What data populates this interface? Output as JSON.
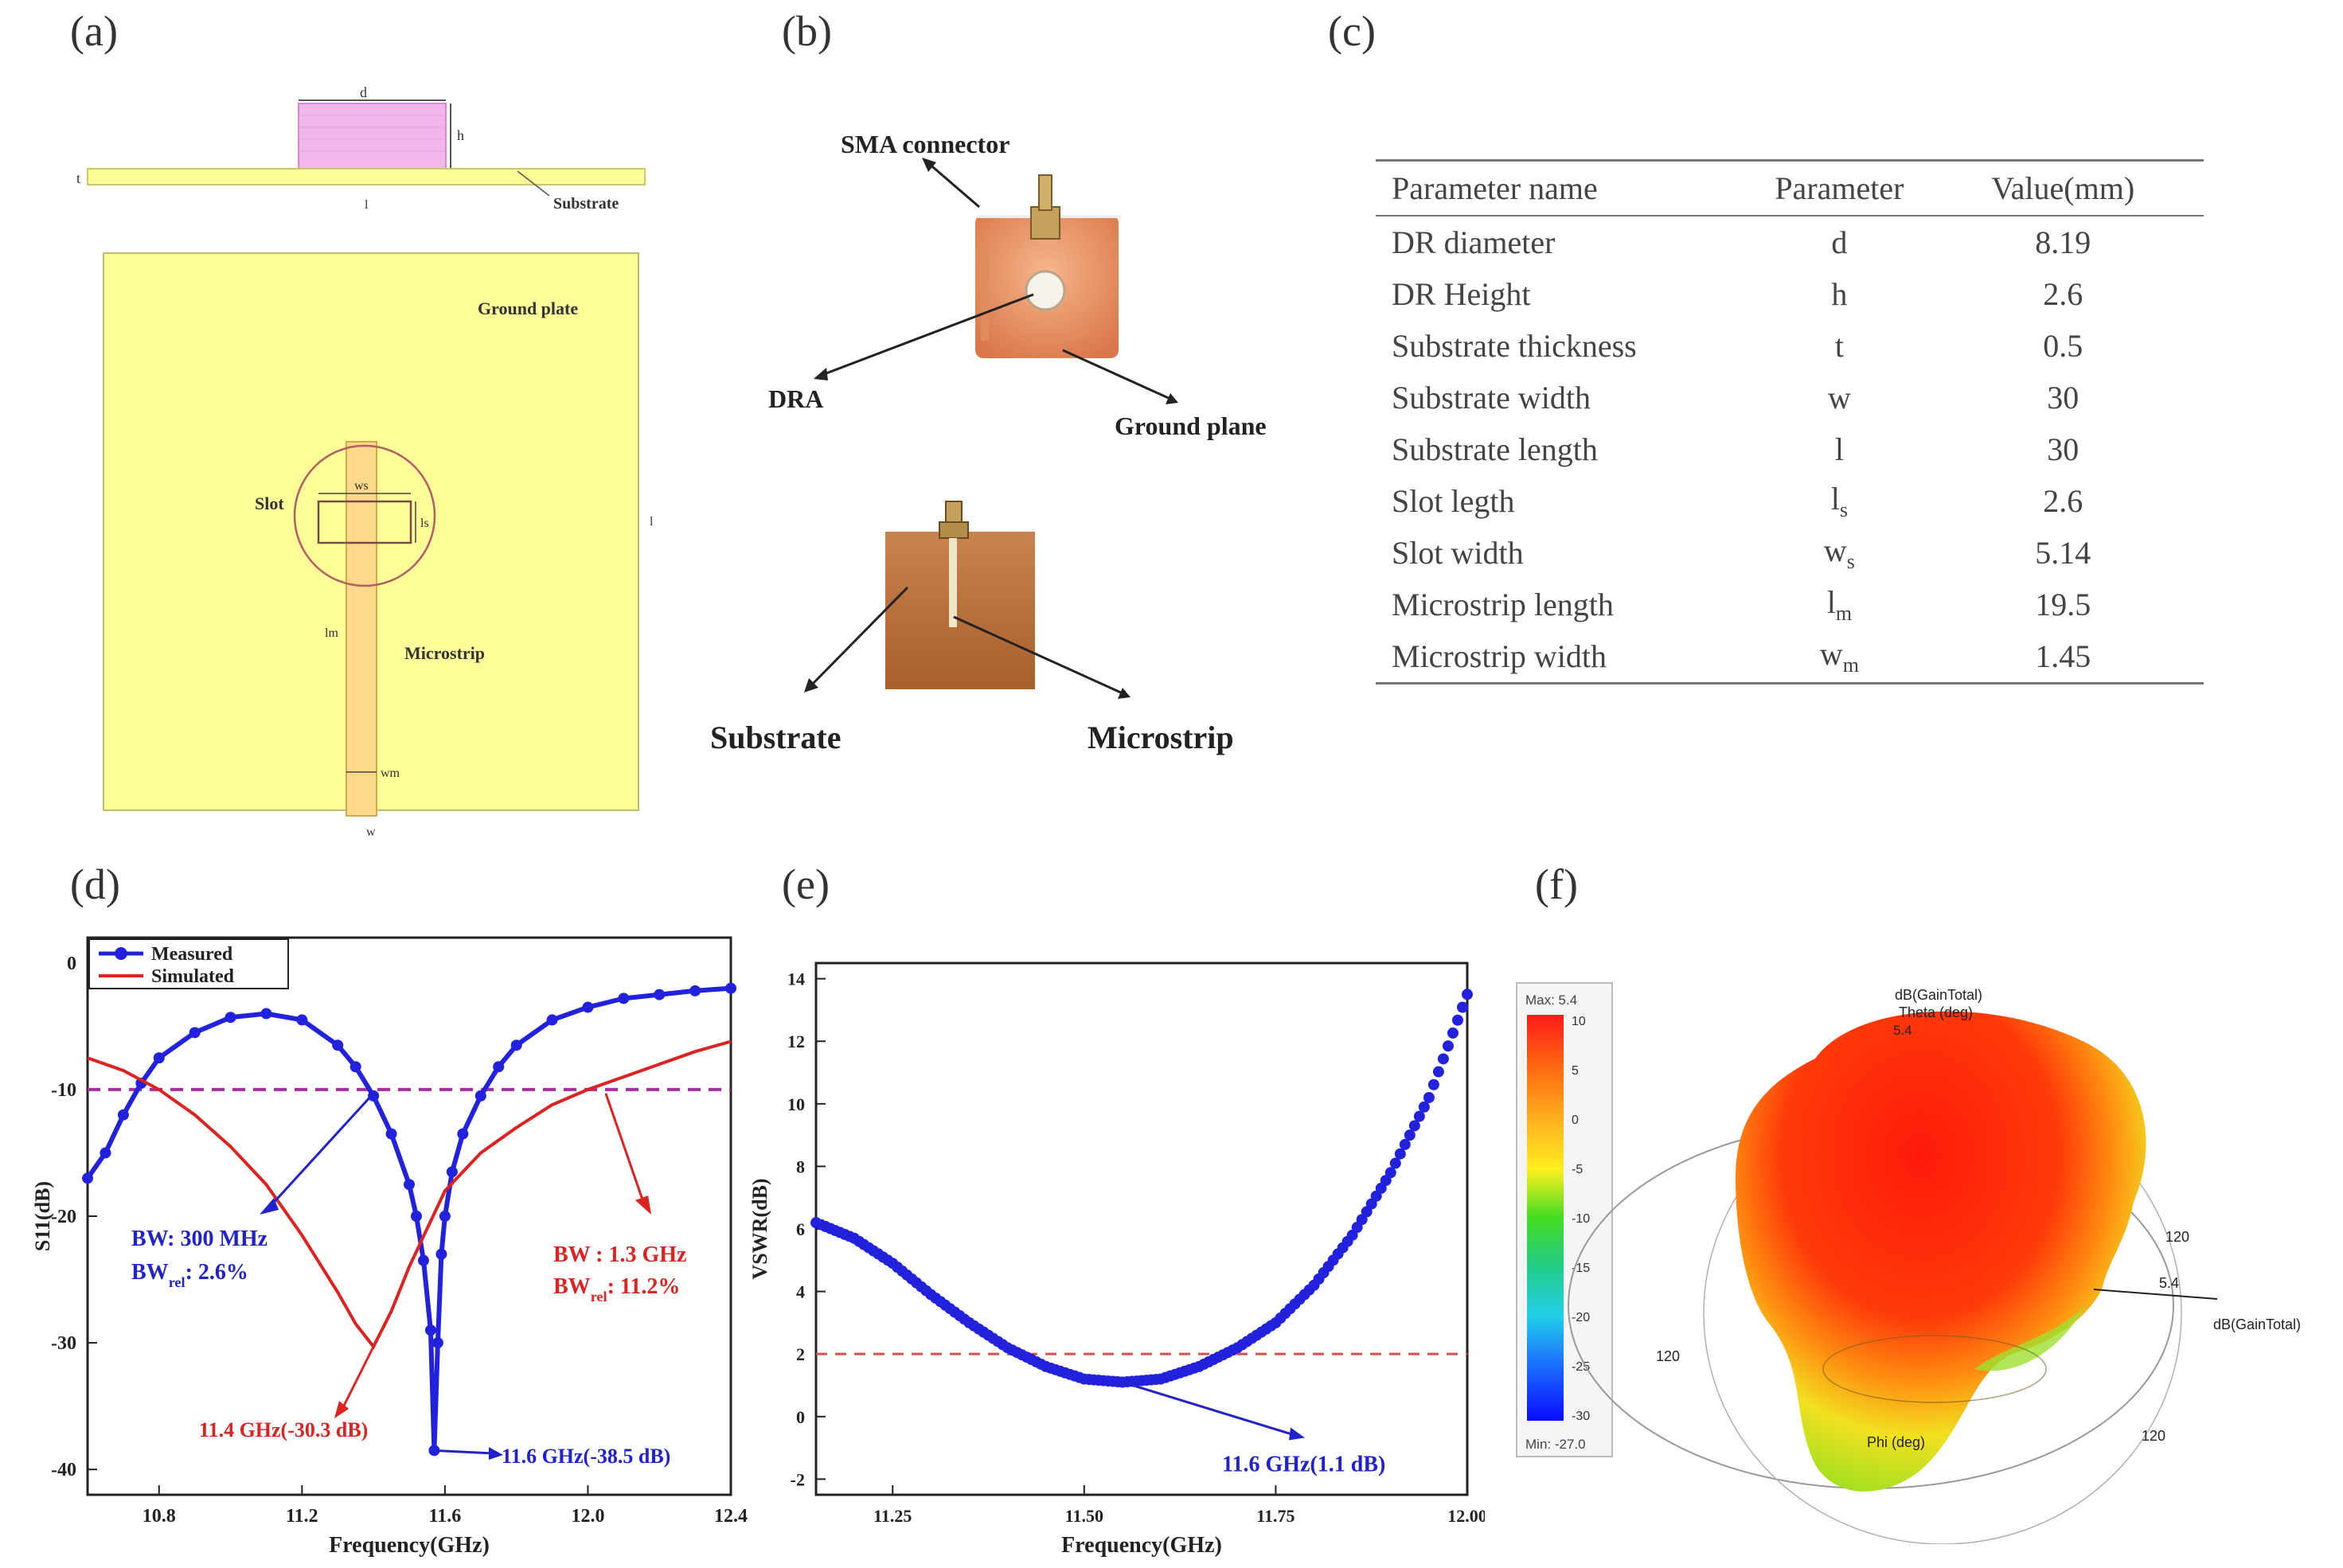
{
  "panels": {
    "a": "(a)",
    "b": "(b)",
    "c": "(c)",
    "d": "(d)",
    "e": "(e)",
    "f": "(f)"
  },
  "panel_a": {
    "side_labels": {
      "d": "d",
      "h": "h",
      "t": "t",
      "l": "l",
      "substrate": "Substrate"
    },
    "top_labels": {
      "ground_plane": "Ground plate",
      "slot": "Slot",
      "ws": "ws",
      "ls": "ls",
      "lm": "lm",
      "microstrip": "Microstrip",
      "wm": "wm",
      "w": "w",
      "l": "l"
    }
  },
  "panel_b": {
    "sma_connector": "SMA connector",
    "dra": "DRA",
    "ground_plane": "Ground plane",
    "substrate": "Substrate",
    "microstrip": "Microstrip"
  },
  "panel_c": {
    "headers": [
      "Parameter name",
      "Parameter",
      "Value(mm)"
    ],
    "rows": [
      {
        "name": "DR diameter",
        "sym": "d",
        "sub": "",
        "value": "8.19"
      },
      {
        "name": "DR Height",
        "sym": "h",
        "sub": "",
        "value": "2.6"
      },
      {
        "name": "Substrate thickness",
        "sym": "t",
        "sub": "",
        "value": "0.5"
      },
      {
        "name": "Substrate width",
        "sym": "w",
        "sub": "",
        "value": "30"
      },
      {
        "name": "Substrate length",
        "sym": "l",
        "sub": "",
        "value": "30"
      },
      {
        "name": "Slot legth",
        "sym": "l",
        "sub": "s",
        "value": "2.6"
      },
      {
        "name": "Slot width",
        "sym": "w",
        "sub": "s",
        "value": "5.14"
      },
      {
        "name": "Microstrip length",
        "sym": "l",
        "sub": "m",
        "value": "19.5"
      },
      {
        "name": "Microstrip width",
        "sym": "w",
        "sub": "m",
        "value": "1.45"
      }
    ]
  },
  "panel_d": {
    "legend": [
      "Measured",
      "Simulated"
    ],
    "ylabel": "S11(dB)",
    "xlabel": "Frequency(GHz)",
    "bw_measured": "BW: 300 MHz",
    "bw_measured_rel_main": "BW",
    "bw_measured_rel_sub": "rel",
    "bw_measured_rel_val": ": 2.6%",
    "bw_simulated": "BW : 1.3 GHz",
    "bw_simulated_rel_main": "BW",
    "bw_simulated_rel_sub": "rel",
    "bw_simulated_rel_val": ": 11.2%",
    "annot_sim": "11.4 GHz(-30.3 dB)",
    "annot_meas": "11.6 GHz(-38.5 dB)"
  },
  "panel_e": {
    "ylabel": "VSWR(dB)",
    "xlabel": "Frequency(GHz)",
    "annot": "11.6 GHz(1.1 dB)"
  },
  "panel_f": {
    "legend_max": "Max: 5.4",
    "legend_min": "Min: -27.0",
    "scale": [
      "10",
      "5",
      "0",
      "-5",
      "-10",
      "-15",
      "-20",
      "-25",
      "-30"
    ],
    "gain_label_top": "dB(GainTotal)",
    "theta_label": "Theta (deg)",
    "phi_label": "Phi (deg)",
    "gain_label_right": "dB(GainTotal)",
    "val_top": "5.4",
    "val_right": "5.4",
    "tick_120_a": "120",
    "tick_120_b": "120",
    "tick_120_c": "120"
  },
  "chart_data": [
    {
      "type": "line",
      "xlabel": "Frequency(GHz)",
      "ylabel": "S11(dB)",
      "xlim": [
        10.6,
        12.4
      ],
      "ylim": [
        -42,
        2
      ],
      "x_ticks": [
        "10.8",
        "11.2",
        "11.6",
        "12.0",
        "12.4"
      ],
      "y_ticks": [
        "0",
        "-10",
        "-20",
        "-30",
        "-40"
      ],
      "threshold": -10,
      "series": [
        {
          "name": "Measured",
          "color": "#2222dd",
          "x": [
            10.6,
            10.65,
            10.7,
            10.75,
            10.8,
            10.9,
            11.0,
            11.1,
            11.2,
            11.3,
            11.35,
            11.4,
            11.45,
            11.5,
            11.52,
            11.54,
            11.56,
            11.57,
            11.58,
            11.59,
            11.6,
            11.62,
            11.65,
            11.7,
            11.75,
            11.8,
            11.9,
            12.0,
            12.1,
            12.2,
            12.3,
            12.4
          ],
          "y": [
            -17,
            -15,
            -12,
            -9.5,
            -7.5,
            -5.5,
            -4.3,
            -4.0,
            -4.5,
            -6.5,
            -8.2,
            -10.5,
            -13.5,
            -17.5,
            -20,
            -23.5,
            -29,
            -38.5,
            -30,
            -23,
            -20,
            -16.5,
            -13.5,
            -10.5,
            -8.2,
            -6.5,
            -4.5,
            -3.5,
            -2.8,
            -2.5,
            -2.2,
            -2.0
          ]
        },
        {
          "name": "Simulated",
          "color": "#dd2222",
          "x": [
            10.6,
            10.7,
            10.8,
            10.9,
            11.0,
            11.1,
            11.2,
            11.3,
            11.35,
            11.4,
            11.45,
            11.5,
            11.55,
            11.6,
            11.7,
            11.8,
            11.9,
            12.0,
            12.1,
            12.2,
            12.3,
            12.4
          ],
          "y": [
            -7.5,
            -8.5,
            -10,
            -12,
            -14.5,
            -17.5,
            -21.5,
            -26,
            -28.5,
            -30.3,
            -27.5,
            -24,
            -21,
            -18,
            -15,
            -13,
            -11.2,
            -10,
            -9,
            -8,
            -7,
            -6.2
          ]
        }
      ]
    },
    {
      "type": "scatter",
      "xlabel": "Frequency(GHz)",
      "ylabel": "VSWR(dB)",
      "xlim": [
        11.15,
        12.0
      ],
      "ylim": [
        -2.5,
        14.5
      ],
      "x_ticks": [
        "11.25",
        "11.50",
        "11.75",
        "12.00"
      ],
      "y_ticks": [
        "-2",
        "0",
        "2",
        "4",
        "6",
        "8",
        "10",
        "12",
        "14"
      ],
      "threshold": 2,
      "series": [
        {
          "name": "",
          "color": "#2222dd",
          "x": [
            11.15,
            11.2,
            11.25,
            11.3,
            11.35,
            11.4,
            11.45,
            11.5,
            11.55,
            11.6,
            11.65,
            11.7,
            11.75,
            11.8,
            11.85,
            11.9,
            11.95,
            12.0
          ],
          "y": [
            6.2,
            5.7,
            4.9,
            3.9,
            3.0,
            2.2,
            1.6,
            1.2,
            1.1,
            1.2,
            1.6,
            2.2,
            3.0,
            4.2,
            5.8,
            7.8,
            10.2,
            13.5
          ]
        }
      ]
    }
  ]
}
